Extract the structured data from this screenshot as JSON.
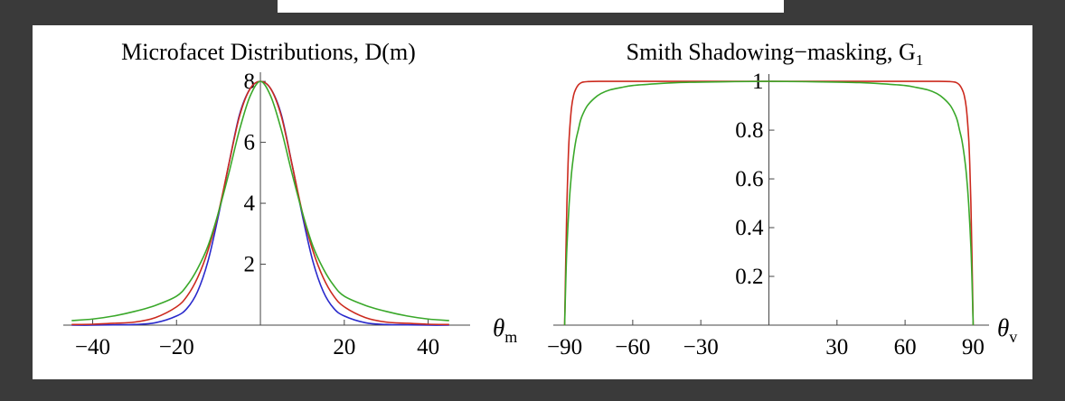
{
  "chart_data": [
    {
      "type": "line",
      "title": "Microfacet Distributions, D(m)",
      "xlabel": "θ",
      "xlabel_sub": "m",
      "xlim": [
        -47,
        50
      ],
      "ylim": [
        0,
        8.3
      ],
      "x_ticks": [
        -40,
        -20,
        20,
        40
      ],
      "x_tick_labels": [
        "−40",
        "−20",
        "20",
        "40"
      ],
      "y_ticks": [
        2,
        4,
        6,
        8
      ],
      "y_tick_labels": [
        "2",
        "4",
        "6",
        "8"
      ],
      "grid": false,
      "series": [
        {
          "color": "#2a2acc",
          "x": [
            -45,
            -40,
            -35,
            -30,
            -25,
            -20,
            -17.5,
            -15,
            -12.5,
            -10,
            -7.5,
            -5,
            -2.5,
            0,
            2.5,
            5,
            7.5,
            10,
            12.5,
            15,
            17.5,
            20,
            25,
            30,
            35,
            40,
            45
          ],
          "values": [
            0,
            0,
            0.01,
            0.02,
            0.08,
            0.3,
            0.55,
            1.1,
            2.1,
            3.6,
            5.3,
            6.9,
            7.75,
            8.0,
            7.75,
            6.9,
            5.3,
            3.6,
            2.1,
            1.1,
            0.55,
            0.3,
            0.08,
            0.02,
            0.01,
            0,
            0
          ]
        },
        {
          "color": "#cc2a1e",
          "x": [
            -45,
            -40,
            -35,
            -30,
            -25,
            -20,
            -17.5,
            -15,
            -12.5,
            -10,
            -7.5,
            -5,
            -2.5,
            0,
            2.5,
            5,
            7.5,
            10,
            12.5,
            15,
            17.5,
            20,
            25,
            30,
            35,
            40,
            45
          ],
          "values": [
            0.02,
            0.03,
            0.06,
            0.1,
            0.25,
            0.6,
            0.95,
            1.55,
            2.45,
            3.7,
            5.3,
            6.85,
            7.75,
            8.0,
            7.75,
            6.85,
            5.3,
            3.7,
            2.45,
            1.55,
            0.95,
            0.6,
            0.25,
            0.1,
            0.06,
            0.03,
            0.02
          ]
        },
        {
          "color": "#3aa82a",
          "x": [
            -45,
            -40,
            -35,
            -30,
            -25,
            -20,
            -17.5,
            -15,
            -12.5,
            -10,
            -7.5,
            -5,
            -2.5,
            0,
            2.5,
            5,
            7.5,
            10,
            12.5,
            15,
            17.5,
            20,
            25,
            30,
            35,
            40,
            45
          ],
          "values": [
            0.15,
            0.2,
            0.3,
            0.45,
            0.65,
            0.95,
            1.3,
            1.85,
            2.6,
            3.7,
            5.0,
            6.4,
            7.5,
            8.0,
            7.5,
            6.4,
            5.0,
            3.7,
            2.6,
            1.85,
            1.3,
            0.95,
            0.65,
            0.45,
            0.3,
            0.2,
            0.15
          ]
        }
      ]
    },
    {
      "type": "line",
      "title": "Smith Shadowing−masking, G",
      "title_sub": "1",
      "xlabel": "θ",
      "xlabel_sub": "v",
      "xlim": [
        -95,
        97
      ],
      "ylim": [
        0,
        1.03
      ],
      "x_ticks": [
        -90,
        -60,
        -30,
        30,
        60,
        90
      ],
      "x_tick_labels": [
        "−90",
        "−60",
        "−30",
        "30",
        "60",
        "90"
      ],
      "y_ticks": [
        0.2,
        0.4,
        0.6,
        0.8,
        1
      ],
      "y_tick_labels": [
        "0.2",
        "0.4",
        "0.6",
        "0.8",
        "1"
      ],
      "grid": false,
      "series": [
        {
          "color": "#cc2a1e",
          "x": [
            -90,
            -89.5,
            -89,
            -88.5,
            -88,
            -87,
            -86,
            -85,
            -84,
            -83,
            -82,
            -80,
            -75,
            -60,
            -30,
            0,
            30,
            60,
            75,
            80,
            82,
            83,
            84,
            85,
            86,
            87,
            88,
            88.5,
            89,
            89.5,
            90
          ],
          "values": [
            0,
            0.27,
            0.5,
            0.66,
            0.77,
            0.89,
            0.945,
            0.97,
            0.985,
            0.993,
            0.997,
            0.999,
            1,
            1,
            1,
            1,
            1,
            1,
            1,
            0.999,
            0.997,
            0.993,
            0.985,
            0.97,
            0.945,
            0.89,
            0.77,
            0.66,
            0.5,
            0.27,
            0
          ]
        },
        {
          "color": "#3aa82a",
          "x": [
            -90,
            -89.5,
            -89,
            -88,
            -87,
            -86,
            -85,
            -84,
            -83,
            -82,
            -80,
            -77,
            -74,
            -70,
            -65,
            -60,
            -50,
            -40,
            -30,
            -15,
            0,
            15,
            30,
            40,
            50,
            60,
            65,
            70,
            74,
            77,
            80,
            82,
            83,
            84,
            85,
            86,
            87,
            88,
            89,
            89.5,
            90
          ],
          "values": [
            0,
            0.18,
            0.32,
            0.5,
            0.62,
            0.7,
            0.76,
            0.8,
            0.84,
            0.865,
            0.9,
            0.93,
            0.95,
            0.965,
            0.975,
            0.983,
            0.99,
            0.995,
            0.997,
            0.999,
            1,
            0.999,
            0.997,
            0.995,
            0.99,
            0.983,
            0.975,
            0.965,
            0.95,
            0.93,
            0.9,
            0.865,
            0.84,
            0.8,
            0.76,
            0.7,
            0.62,
            0.5,
            0.32,
            0.18,
            0
          ]
        }
      ]
    }
  ]
}
